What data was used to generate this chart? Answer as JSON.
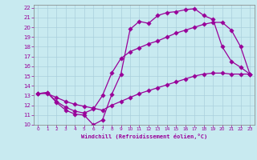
{
  "xlabel": "Windchill (Refroidissement éolien,°C)",
  "bg_color": "#c8eaf0",
  "line_color": "#990099",
  "grid_color": "#aacfdc",
  "xlim": [
    -0.5,
    23.5
  ],
  "ylim": [
    10,
    22.3
  ],
  "x_ticks": [
    0,
    1,
    2,
    3,
    4,
    5,
    6,
    7,
    8,
    9,
    10,
    11,
    12,
    13,
    14,
    15,
    16,
    17,
    18,
    19,
    20,
    21,
    22,
    23
  ],
  "y_ticks": [
    10,
    11,
    12,
    13,
    14,
    15,
    16,
    17,
    18,
    19,
    20,
    21,
    22
  ],
  "curve1_x": [
    0,
    1,
    2,
    3,
    4,
    5,
    6,
    7,
    8,
    9,
    10,
    11,
    12,
    13,
    14,
    15,
    16,
    17,
    18,
    19,
    20,
    21,
    22,
    23
  ],
  "curve1_y": [
    13.2,
    13.3,
    12.3,
    11.5,
    11.1,
    11.0,
    10.0,
    10.5,
    13.1,
    15.2,
    19.8,
    20.6,
    20.4,
    21.2,
    21.5,
    21.6,
    21.8,
    21.9,
    21.2,
    20.8,
    18.0,
    16.5,
    15.9,
    15.2
  ],
  "curve2_x": [
    0,
    1,
    2,
    3,
    4,
    5,
    6,
    7,
    8,
    9,
    10,
    11,
    12,
    13,
    14,
    15,
    16,
    17,
    18,
    19,
    20,
    21,
    22,
    23
  ],
  "curve2_y": [
    13.2,
    13.2,
    12.8,
    12.4,
    12.1,
    11.9,
    11.7,
    11.5,
    12.0,
    12.4,
    12.8,
    13.2,
    13.5,
    13.8,
    14.1,
    14.4,
    14.7,
    15.0,
    15.2,
    15.3,
    15.3,
    15.2,
    15.2,
    15.2
  ],
  "curve3_x": [
    0,
    1,
    2,
    3,
    4,
    5,
    6,
    7,
    8,
    9,
    10,
    11,
    12,
    13,
    14,
    15,
    16,
    17,
    18,
    19,
    20,
    21,
    22,
    23
  ],
  "curve3_y": [
    13.2,
    13.3,
    12.4,
    11.8,
    11.4,
    11.2,
    11.6,
    13.0,
    15.3,
    16.8,
    17.5,
    17.9,
    18.3,
    18.6,
    19.0,
    19.4,
    19.7,
    20.0,
    20.3,
    20.5,
    20.5,
    19.7,
    18.0,
    15.2
  ]
}
